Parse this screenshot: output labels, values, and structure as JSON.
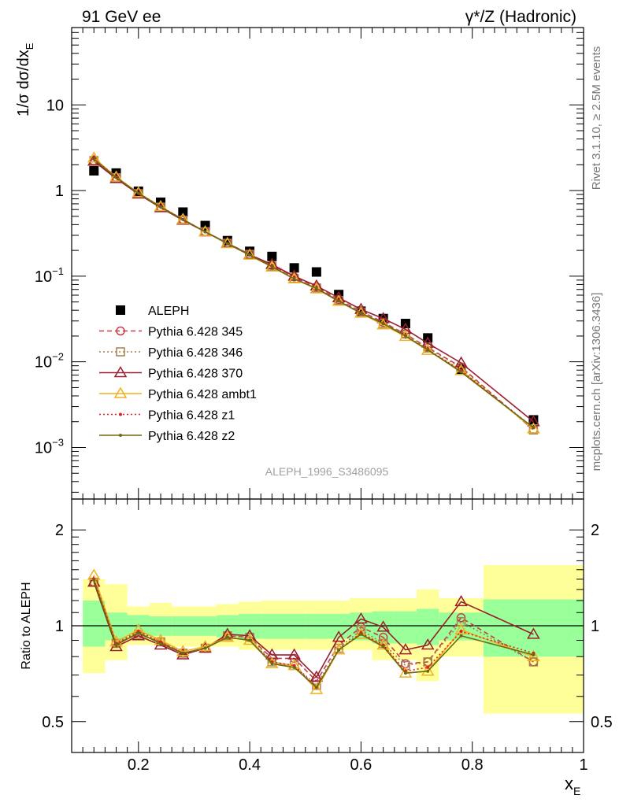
{
  "header": {
    "left_title": "91 GeV ee",
    "right_title": "γ*/Z (Hadronic)",
    "side_label_top": "Rivet 3.1.10, ≥ 2.5M events",
    "side_label_bottom": "mcplots.cern.ch [arXiv:1306.3436]",
    "watermark": "ALEPH_1996_S3486095"
  },
  "axes": {
    "main_ylabel": "1/σ dσ/dx",
    "main_ylabel_sub": "E",
    "ratio_ylabel": "Ratio to ALEPH",
    "xlabel": "x",
    "xlabel_sub": "E",
    "main_ytick_labels": [
      {
        "value": 10,
        "base": "10",
        "exp": ""
      },
      {
        "value": 1,
        "base": "1",
        "exp": ""
      },
      {
        "value": 0.1,
        "base": "10",
        "exp": "−1"
      },
      {
        "value": 0.01,
        "base": "10",
        "exp": "−2"
      },
      {
        "value": 0.001,
        "base": "10",
        "exp": "−3"
      }
    ],
    "ratio_ytick_labels": [
      "2",
      "1",
      "0.5"
    ],
    "xtick_labels": [
      "0.2",
      "0.4",
      "0.6",
      "0.8",
      "1"
    ]
  },
  "chart_data": [
    {
      "type": "scatter",
      "panel": "main",
      "log_y": true,
      "xlim": [
        0.08,
        1.0
      ],
      "ylim": [
        0.00025,
        80
      ],
      "x": [
        0.12,
        0.16,
        0.2,
        0.24,
        0.28,
        0.32,
        0.36,
        0.4,
        0.44,
        0.48,
        0.52,
        0.56,
        0.6,
        0.64,
        0.68,
        0.72,
        0.78,
        0.91
      ],
      "series": [
        {
          "name": "ALEPH",
          "marker": "square",
          "color": "#000000",
          "dash": "",
          "line": false,
          "values": [
            1.7,
            1.6,
            0.98,
            0.73,
            0.56,
            0.39,
            0.26,
            0.195,
            0.17,
            0.125,
            0.112,
            0.061,
            0.039,
            0.032,
            0.028,
            0.019,
            0.0082,
            0.0021
          ]
        },
        {
          "name": "Pythia 6.428 345",
          "marker": "circle",
          "color": "#c2404d",
          "dash": "6,4",
          "line": true,
          "values": [
            2.22,
            1.42,
            0.92,
            0.64,
            0.46,
            0.33,
            0.243,
            0.18,
            0.134,
            0.098,
            0.075,
            0.053,
            0.039,
            0.029,
            0.021,
            0.0147,
            0.0087,
            0.0016
          ]
        },
        {
          "name": "Pythia 6.428 346",
          "marker": "square-open",
          "color": "#a8804a",
          "dash": "2,3",
          "line": true,
          "values": [
            2.24,
            1.41,
            0.92,
            0.64,
            0.45,
            0.33,
            0.242,
            0.18,
            0.131,
            0.094,
            0.073,
            0.052,
            0.038,
            0.028,
            0.0212,
            0.0145,
            0.0085,
            0.0016
          ]
        },
        {
          "name": "Pythia 6.428 370",
          "marker": "triangle-open",
          "color": "#9a1e2e",
          "dash": "",
          "line": true,
          "values": [
            2.2,
            1.38,
            0.91,
            0.63,
            0.45,
            0.33,
            0.243,
            0.178,
            0.137,
            0.1,
            0.077,
            0.056,
            0.041,
            0.032,
            0.024,
            0.0165,
            0.0097,
            0.002
          ]
        },
        {
          "name": "Pythia 6.428 ambt1",
          "marker": "triangle-open",
          "color": "#f0b020",
          "dash": "",
          "line": true,
          "values": [
            2.4,
            1.44,
            0.94,
            0.65,
            0.46,
            0.33,
            0.24,
            0.176,
            0.128,
            0.093,
            0.071,
            0.051,
            0.037,
            0.027,
            0.0198,
            0.0136,
            0.0079,
            0.00165
          ]
        },
        {
          "name": "Pythia 6.428 z1",
          "marker": "dot",
          "color": "#e02020",
          "dash": "2,3",
          "line": true,
          "values": [
            2.35,
            1.43,
            0.93,
            0.65,
            0.46,
            0.33,
            0.24,
            0.176,
            0.13,
            0.094,
            0.072,
            0.052,
            0.037,
            0.028,
            0.0202,
            0.014,
            0.0079,
            0.0017
          ]
        },
        {
          "name": "Pythia 6.428 z2",
          "marker": "dot",
          "color": "#6b6a10",
          "dash": "",
          "line": true,
          "values": [
            2.33,
            1.42,
            0.93,
            0.64,
            0.46,
            0.33,
            0.24,
            0.176,
            0.129,
            0.093,
            0.072,
            0.051,
            0.037,
            0.028,
            0.02,
            0.0138,
            0.0076,
            0.0017
          ]
        }
      ]
    },
    {
      "type": "line",
      "panel": "ratio",
      "log_y": true,
      "xlim": [
        0.08,
        1.0
      ],
      "ylim": [
        0.4,
        2.5
      ],
      "x": [
        0.12,
        0.16,
        0.2,
        0.24,
        0.28,
        0.32,
        0.36,
        0.4,
        0.44,
        0.48,
        0.52,
        0.56,
        0.6,
        0.64,
        0.68,
        0.72,
        0.78,
        0.91
      ],
      "uncertainty_bands": [
        {
          "x_lo": 0.1,
          "x_hi": 0.14,
          "inner": [
            0.86,
            1.2
          ],
          "outer": [
            0.71,
            1.4
          ]
        },
        {
          "x_lo": 0.14,
          "x_hi": 0.18,
          "inner": [
            0.9,
            1.1
          ],
          "outer": [
            0.78,
            1.35
          ]
        },
        {
          "x_lo": 0.18,
          "x_hi": 0.22,
          "inner": [
            0.93,
            1.08
          ],
          "outer": [
            0.87,
            1.15
          ]
        },
        {
          "x_lo": 0.22,
          "x_hi": 0.26,
          "inner": [
            0.93,
            1.07
          ],
          "outer": [
            0.87,
            1.18
          ]
        },
        {
          "x_lo": 0.26,
          "x_hi": 0.3,
          "inner": [
            0.93,
            1.07
          ],
          "outer": [
            0.86,
            1.15
          ]
        },
        {
          "x_lo": 0.3,
          "x_hi": 0.34,
          "inner": [
            0.93,
            1.07
          ],
          "outer": [
            0.86,
            1.15
          ]
        },
        {
          "x_lo": 0.34,
          "x_hi": 0.38,
          "inner": [
            0.92,
            1.08
          ],
          "outer": [
            0.86,
            1.17
          ]
        },
        {
          "x_lo": 0.38,
          "x_hi": 0.42,
          "inner": [
            0.91,
            1.09
          ],
          "outer": [
            0.84,
            1.19
          ]
        },
        {
          "x_lo": 0.42,
          "x_hi": 0.46,
          "inner": [
            0.91,
            1.09
          ],
          "outer": [
            0.84,
            1.2
          ]
        },
        {
          "x_lo": 0.46,
          "x_hi": 0.5,
          "inner": [
            0.91,
            1.09
          ],
          "outer": [
            0.84,
            1.2
          ]
        },
        {
          "x_lo": 0.5,
          "x_hi": 0.54,
          "inner": [
            0.91,
            1.09
          ],
          "outer": [
            0.84,
            1.2
          ]
        },
        {
          "x_lo": 0.54,
          "x_hi": 0.58,
          "inner": [
            0.91,
            1.09
          ],
          "outer": [
            0.84,
            1.2
          ]
        },
        {
          "x_lo": 0.58,
          "x_hi": 0.62,
          "inner": [
            0.9,
            1.1
          ],
          "outer": [
            0.84,
            1.22
          ]
        },
        {
          "x_lo": 0.62,
          "x_hi": 0.66,
          "inner": [
            0.88,
            1.11
          ],
          "outer": [
            0.78,
            1.22
          ]
        },
        {
          "x_lo": 0.66,
          "x_hi": 0.7,
          "inner": [
            0.88,
            1.11
          ],
          "outer": [
            0.78,
            1.22
          ]
        },
        {
          "x_lo": 0.7,
          "x_hi": 0.74,
          "inner": [
            0.87,
            1.13
          ],
          "outer": [
            0.67,
            1.3
          ]
        },
        {
          "x_lo": 0.74,
          "x_hi": 0.82,
          "inner": [
            0.9,
            1.1
          ],
          "outer": [
            0.8,
            1.22
          ]
        },
        {
          "x_lo": 0.82,
          "x_hi": 1.0,
          "inner": [
            0.8,
            1.21
          ],
          "outer": [
            0.53,
            1.55
          ]
        }
      ],
      "band_colors": {
        "inner": "#99ff99",
        "outer": "#ffff99"
      },
      "series": [
        {
          "name": "Pythia 6.428 345",
          "marker": "circle",
          "color": "#c2404d",
          "dash": "6,4",
          "values": [
            1.37,
            0.88,
            0.94,
            0.89,
            0.82,
            0.85,
            0.93,
            0.92,
            0.79,
            0.79,
            0.67,
            0.87,
            0.99,
            0.92,
            0.76,
            0.77,
            1.06,
            0.77
          ]
        },
        {
          "name": "Pythia 6.428 346",
          "marker": "square-open",
          "color": "#a8804a",
          "dash": "2,3",
          "values": [
            1.37,
            0.88,
            0.94,
            0.89,
            0.82,
            0.85,
            0.93,
            0.92,
            0.77,
            0.75,
            0.65,
            0.85,
            0.97,
            0.88,
            0.75,
            0.77,
            1.03,
            0.77
          ]
        },
        {
          "name": "Pythia 6.428 370",
          "marker": "triangle-open",
          "color": "#9a1e2e",
          "dash": "",
          "values": [
            1.37,
            0.86,
            0.93,
            0.87,
            0.81,
            0.85,
            0.94,
            0.93,
            0.81,
            0.81,
            0.69,
            0.92,
            1.05,
            0.99,
            0.84,
            0.87,
            1.19,
            0.94
          ]
        },
        {
          "name": "Pythia 6.428 ambt1",
          "marker": "triangle-open",
          "color": "#f0b020",
          "dash": "",
          "values": [
            1.44,
            0.89,
            0.97,
            0.9,
            0.83,
            0.86,
            0.92,
            0.9,
            0.76,
            0.75,
            0.63,
            0.84,
            0.94,
            0.87,
            0.71,
            0.72,
            0.97,
            0.8
          ]
        },
        {
          "name": "Pythia 6.428 z1",
          "marker": "dot",
          "color": "#e02020",
          "dash": "2,3",
          "values": [
            1.4,
            0.88,
            0.96,
            0.89,
            0.82,
            0.85,
            0.92,
            0.9,
            0.77,
            0.75,
            0.64,
            0.84,
            0.95,
            0.87,
            0.72,
            0.74,
            0.96,
            0.82
          ]
        },
        {
          "name": "Pythia 6.428 z2",
          "marker": "dot",
          "color": "#6b6a10",
          "dash": "",
          "values": [
            1.39,
            0.87,
            0.95,
            0.88,
            0.82,
            0.85,
            0.92,
            0.9,
            0.76,
            0.74,
            0.64,
            0.84,
            0.94,
            0.86,
            0.71,
            0.72,
            0.93,
            0.81
          ]
        }
      ]
    }
  ]
}
